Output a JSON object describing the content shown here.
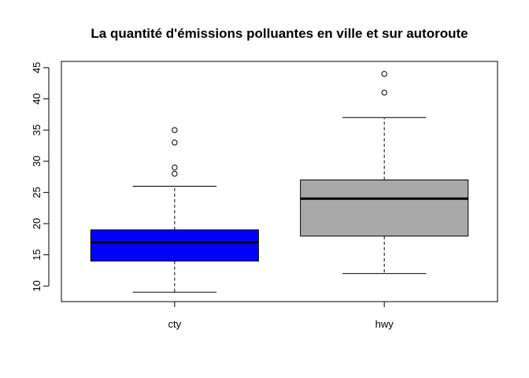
{
  "chart_data": {
    "type": "boxplot",
    "title": "La quantité d'émissions polluantes en ville et sur autoroute",
    "xlabel": "",
    "ylabel": "",
    "ylim": [
      7.5,
      46
    ],
    "yticks": [
      10,
      15,
      20,
      25,
      30,
      35,
      40,
      45
    ],
    "categories": [
      "cty",
      "hwy"
    ],
    "grid": false,
    "series": [
      {
        "category": "cty",
        "color": "#0000FF",
        "whisker_low": 9,
        "q1": 14,
        "median": 17,
        "q3": 19,
        "whisker_high": 26,
        "outliers": [
          28,
          29,
          33,
          35
        ]
      },
      {
        "category": "hwy",
        "color": "#A9A9A9",
        "whisker_low": 12,
        "q1": 18,
        "median": 24,
        "q3": 27,
        "whisker_high": 37,
        "outliers": [
          41,
          44
        ]
      }
    ]
  }
}
